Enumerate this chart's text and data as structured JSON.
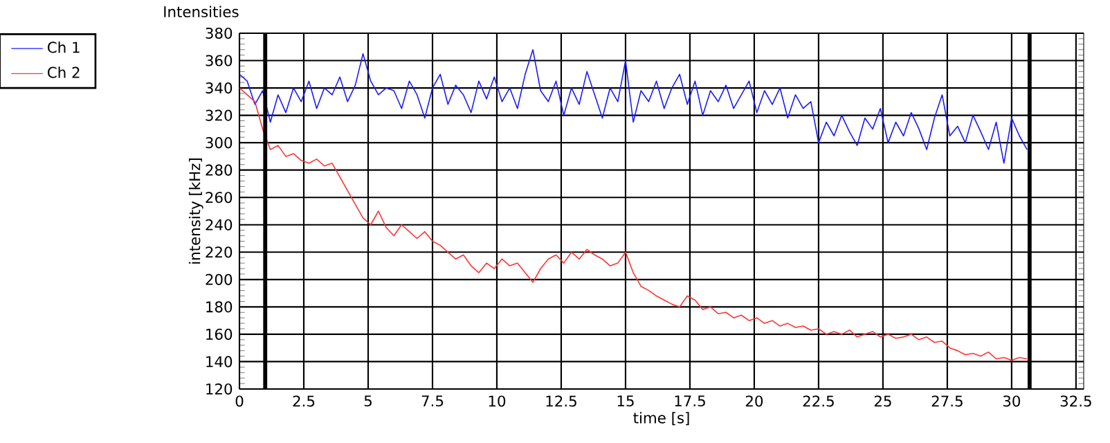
{
  "chart_data": {
    "type": "line",
    "title": "Intensities",
    "xlabel": "time [s]",
    "ylabel": "intensity [kHz]",
    "x": [
      0,
      0.3,
      0.6,
      0.9,
      1.2,
      1.5,
      1.8,
      2.1,
      2.4,
      2.7,
      3.0,
      3.3,
      3.6,
      3.9,
      4.2,
      4.5,
      4.8,
      5.1,
      5.4,
      5.7,
      6.0,
      6.3,
      6.6,
      6.9,
      7.2,
      7.5,
      7.8,
      8.1,
      8.4,
      8.7,
      9.0,
      9.3,
      9.6,
      9.9,
      10.2,
      10.5,
      10.8,
      11.1,
      11.4,
      11.7,
      12.0,
      12.3,
      12.6,
      12.9,
      13.2,
      13.5,
      13.8,
      14.1,
      14.4,
      14.7,
      15.0,
      15.3,
      15.6,
      15.9,
      16.2,
      16.5,
      16.8,
      17.1,
      17.4,
      17.7,
      18.0,
      18.3,
      18.6,
      18.9,
      19.2,
      19.5,
      19.8,
      20.1,
      20.4,
      20.7,
      21.0,
      21.3,
      21.6,
      21.9,
      22.2,
      22.5,
      22.8,
      23.1,
      23.4,
      23.7,
      24.0,
      24.3,
      24.6,
      24.9,
      25.2,
      25.5,
      25.8,
      26.1,
      26.4,
      26.7,
      27.0,
      27.3,
      27.6,
      27.9,
      28.2,
      28.5,
      28.8,
      29.1,
      29.4,
      29.7,
      30.0,
      30.3,
      30.6
    ],
    "series": [
      {
        "name": "Ch 1",
        "color": "#1a1aff",
        "values": [
          350,
          345,
          328,
          338,
          315,
          335,
          322,
          340,
          330,
          345,
          325,
          340,
          335,
          348,
          330,
          342,
          365,
          345,
          335,
          340,
          338,
          325,
          345,
          335,
          318,
          340,
          350,
          328,
          342,
          335,
          322,
          345,
          332,
          348,
          330,
          340,
          325,
          350,
          368,
          338,
          330,
          345,
          320,
          340,
          328,
          352,
          335,
          318,
          340,
          330,
          360,
          315,
          338,
          330,
          345,
          325,
          340,
          350,
          328,
          345,
          320,
          338,
          330,
          342,
          325,
          335,
          345,
          322,
          338,
          328,
          340,
          318,
          335,
          325,
          330,
          300,
          315,
          305,
          320,
          308,
          298,
          318,
          310,
          325,
          300,
          315,
          305,
          322,
          310,
          295,
          318,
          335,
          305,
          312,
          300,
          320,
          308,
          295,
          315,
          285,
          318,
          305,
          295
        ]
      },
      {
        "name": "Ch 2",
        "color": "#ff3333",
        "values": [
          340,
          335,
          330,
          310,
          295,
          298,
          290,
          292,
          287,
          285,
          288,
          283,
          285,
          275,
          265,
          255,
          245,
          240,
          250,
          238,
          232,
          240,
          235,
          230,
          235,
          228,
          225,
          220,
          215,
          218,
          210,
          205,
          212,
          208,
          215,
          210,
          212,
          205,
          198,
          208,
          215,
          218,
          212,
          220,
          215,
          222,
          218,
          215,
          210,
          212,
          220,
          205,
          195,
          192,
          188,
          185,
          182,
          180,
          188,
          185,
          178,
          180,
          175,
          176,
          172,
          174,
          170,
          172,
          168,
          170,
          166,
          168,
          165,
          166,
          163,
          164,
          160,
          162,
          160,
          163,
          158,
          160,
          162,
          158,
          160,
          157,
          158,
          160,
          156,
          158,
          154,
          155,
          150,
          148,
          145,
          146,
          144,
          147,
          142,
          143,
          141,
          143,
          142
        ]
      }
    ],
    "xlim": [
      0,
      32.8
    ],
    "xticks": [
      0,
      2.5,
      5,
      7.5,
      10,
      12.5,
      15,
      17.5,
      20,
      22.5,
      25,
      27.5,
      30,
      32.5
    ],
    "ylim": [
      120,
      380
    ],
    "yticks": [
      120,
      140,
      160,
      180,
      200,
      220,
      240,
      260,
      280,
      300,
      320,
      340,
      360,
      380
    ],
    "ref_lines": [
      {
        "axis": "x",
        "value": 1.0,
        "color": "#000000"
      },
      {
        "axis": "x",
        "value": 30.7,
        "color": "#000000"
      }
    ],
    "grid": true,
    "legend": "top left",
    "line_style": "solid",
    "marker": "none"
  }
}
